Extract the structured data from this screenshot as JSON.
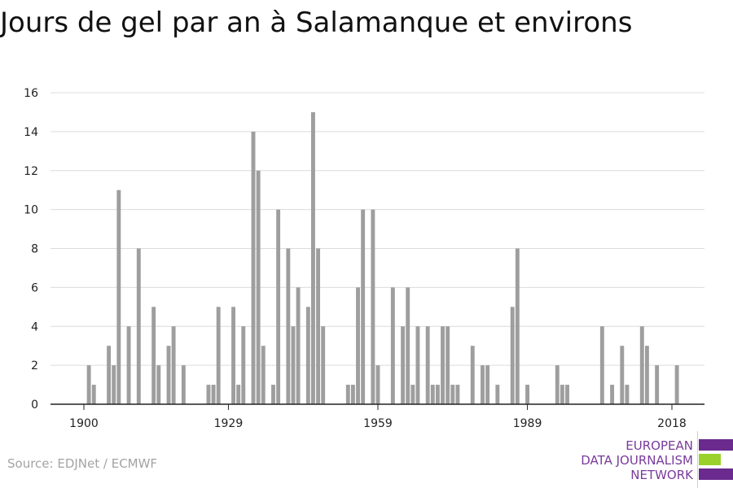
{
  "title": "Jours de gel par an à Salamanque et environs",
  "source": "Source: EDJNet / ECMWF",
  "logo": {
    "lines": [
      "EUROPEAN",
      "DATA JOURNALISM",
      "NETWORK"
    ],
    "color_text": "#7a3b9c",
    "color_purple": "#6a2a8e",
    "color_green": "#9ad12b"
  },
  "chart_data": {
    "type": "bar",
    "title": "Jours de gel par an à Salamanque et environs",
    "xlabel": "",
    "ylabel": "",
    "ylim": [
      0,
      16
    ],
    "yticks": [
      0,
      2,
      4,
      6,
      8,
      10,
      12,
      14,
      16
    ],
    "xticks": [
      1900,
      1929,
      1959,
      1989,
      2018
    ],
    "grid": true,
    "bar_color": "#9e9e9e",
    "x": [
      1900,
      1901,
      1902,
      1903,
      1904,
      1905,
      1906,
      1907,
      1908,
      1909,
      1910,
      1911,
      1912,
      1913,
      1914,
      1915,
      1916,
      1917,
      1918,
      1919,
      1920,
      1921,
      1922,
      1923,
      1924,
      1925,
      1926,
      1927,
      1928,
      1929,
      1930,
      1931,
      1932,
      1933,
      1934,
      1935,
      1936,
      1937,
      1938,
      1939,
      1940,
      1941,
      1942,
      1943,
      1944,
      1945,
      1946,
      1947,
      1948,
      1949,
      1950,
      1951,
      1952,
      1953,
      1954,
      1955,
      1956,
      1957,
      1958,
      1959,
      1960,
      1961,
      1962,
      1963,
      1964,
      1965,
      1966,
      1967,
      1968,
      1969,
      1970,
      1971,
      1972,
      1973,
      1974,
      1975,
      1976,
      1977,
      1978,
      1979,
      1980,
      1981,
      1982,
      1983,
      1984,
      1985,
      1986,
      1987,
      1988,
      1989,
      1990,
      1991,
      1992,
      1993,
      1994,
      1995,
      1996,
      1997,
      1998,
      1999,
      2000,
      2001,
      2002,
      2003,
      2004,
      2005,
      2006,
      2007,
      2008,
      2009,
      2010,
      2011,
      2012,
      2013,
      2014,
      2015,
      2016,
      2017,
      2018,
      2019,
      2020
    ],
    "values": [
      0,
      2,
      1,
      0,
      0,
      3,
      2,
      11,
      0,
      4,
      0,
      8,
      0,
      0,
      5,
      2,
      0,
      3,
      4,
      0,
      2,
      0,
      0,
      0,
      0,
      1,
      1,
      5,
      0,
      0,
      5,
      1,
      4,
      0,
      14,
      12,
      3,
      0,
      1,
      10,
      0,
      8,
      4,
      6,
      0,
      5,
      15,
      8,
      4,
      0,
      0,
      0,
      0,
      1,
      1,
      6,
      10,
      0,
      10,
      2,
      0,
      0,
      6,
      0,
      4,
      6,
      1,
      4,
      0,
      4,
      1,
      1,
      4,
      4,
      1,
      1,
      0,
      0,
      3,
      0,
      2,
      2,
      0,
      1,
      0,
      0,
      5,
      8,
      0,
      1,
      0,
      0,
      0,
      0,
      0,
      2,
      1,
      1,
      0,
      0,
      0,
      0,
      0,
      0,
      4,
      0,
      1,
      0,
      3,
      1,
      0,
      0,
      4,
      3,
      0,
      2,
      0,
      0,
      0,
      2,
      0
    ]
  }
}
